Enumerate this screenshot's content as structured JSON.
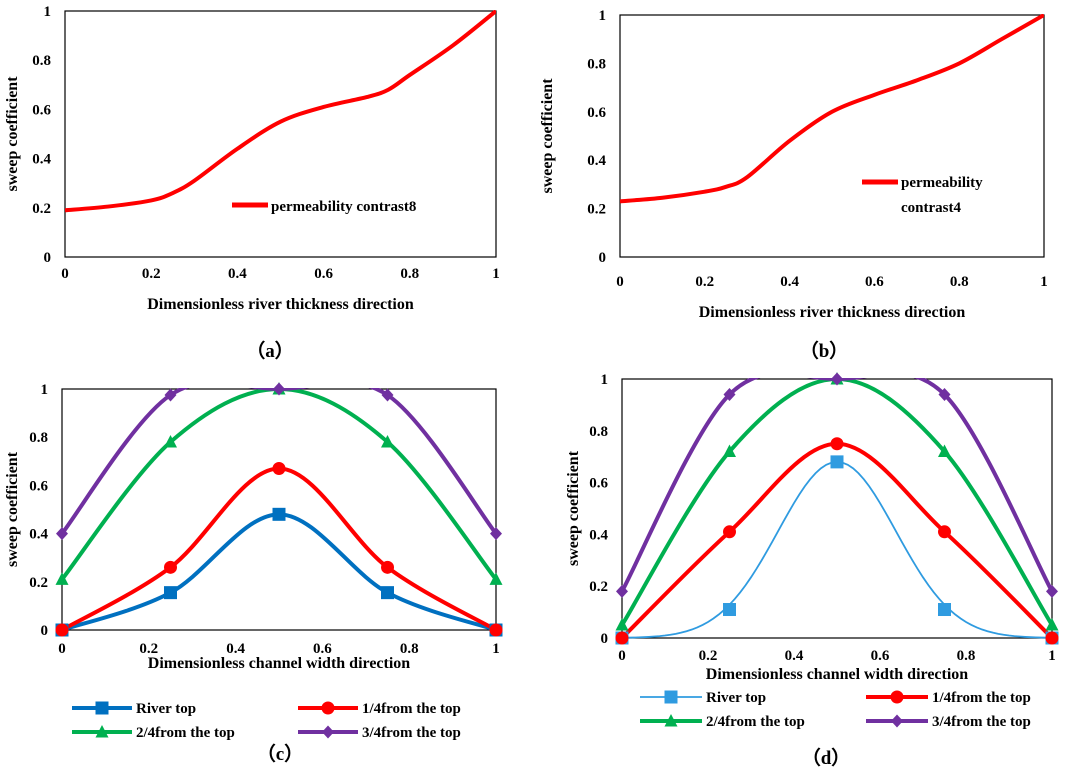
{
  "colors": {
    "axis": "#000000",
    "red": "#ff0000",
    "blue": "#0070c0",
    "green": "#00b050",
    "purple": "#7030a0",
    "marker_blue": "#2f9be0",
    "frame": "#9a9a9a"
  },
  "chart_data": [
    {
      "id": "a",
      "type": "line",
      "caption": "（a）",
      "xlabel": "Dimensionless river thickness direction",
      "ylabel": "sweep coefficient",
      "xlim": [
        0,
        1
      ],
      "ylim": [
        0,
        1
      ],
      "xticks": [
        "0",
        "0.2",
        "0.4",
        "0.6",
        "0.8",
        "1"
      ],
      "yticks": [
        "0",
        "0.2",
        "0.4",
        "0.6",
        "0.8",
        "1"
      ],
      "series": [
        {
          "name": "permeability contrast8",
          "color": "#ff0000",
          "x": [
            0,
            0.1,
            0.2,
            0.25,
            0.3,
            0.4,
            0.5,
            0.6,
            0.7,
            0.75,
            0.8,
            0.9,
            1
          ],
          "y": [
            0.19,
            0.205,
            0.23,
            0.26,
            0.31,
            0.44,
            0.55,
            0.61,
            0.65,
            0.68,
            0.74,
            0.86,
            1
          ]
        }
      ]
    },
    {
      "id": "b",
      "type": "line",
      "caption": "（b）",
      "xlabel": "Dimensionless river thickness direction",
      "ylabel": "sweep coefficient",
      "xlim": [
        0,
        1
      ],
      "ylim": [
        0,
        1
      ],
      "xticks": [
        "0",
        "0.2",
        "0.4",
        "0.6",
        "0.8",
        "1"
      ],
      "yticks": [
        "0",
        "0.2",
        "0.4",
        "0.6",
        "0.8",
        "1"
      ],
      "series": [
        {
          "name": "permeability contrast4",
          "name_lines": [
            "permeability",
            "contrast4"
          ],
          "color": "#ff0000",
          "x": [
            0,
            0.1,
            0.2,
            0.25,
            0.3,
            0.4,
            0.5,
            0.6,
            0.7,
            0.8,
            0.9,
            1
          ],
          "y": [
            0.23,
            0.245,
            0.27,
            0.29,
            0.33,
            0.48,
            0.6,
            0.67,
            0.73,
            0.8,
            0.9,
            1
          ]
        }
      ]
    },
    {
      "id": "c",
      "type": "line",
      "caption": "（c）",
      "xlabel": "Dimensionless channel width direction",
      "ylabel": "sweep coefficient",
      "xlim": [
        0,
        1
      ],
      "ylim": [
        0,
        1
      ],
      "xticks": [
        "0",
        "0.2",
        "0.4",
        "0.6",
        "0.8",
        "1"
      ],
      "yticks": [
        "0",
        "0.2",
        "0.4",
        "0.6",
        "0.8",
        "1"
      ],
      "x": [
        0,
        0.25,
        0.5,
        0.75,
        1
      ],
      "series": [
        {
          "name": "River top",
          "color": "#0070c0",
          "marker": "square",
          "values": [
            0,
            0.155,
            0.48,
            0.155,
            0
          ]
        },
        {
          "name": "1/4from the top",
          "color": "#ff0000",
          "marker": "circle",
          "values": [
            0,
            0.26,
            0.67,
            0.26,
            0
          ]
        },
        {
          "name": "2/4from the top",
          "color": "#00b050",
          "marker": "triangle",
          "values": [
            0.21,
            0.78,
            1,
            0.78,
            0.21
          ]
        },
        {
          "name": "3/4from the top",
          "color": "#7030a0",
          "marker": "diamond",
          "values": [
            0.4,
            0.975,
            1,
            0.975,
            0.4
          ]
        }
      ]
    },
    {
      "id": "d",
      "type": "line",
      "caption": "（d）",
      "xlabel": "Dimensionless channel width direction",
      "ylabel": "sweep coefficient",
      "xlim": [
        0,
        1
      ],
      "ylim": [
        0,
        1
      ],
      "xticks": [
        "0",
        "0.2",
        "0.4",
        "0.6",
        "0.8",
        "1"
      ],
      "yticks": [
        "0",
        "0.2",
        "0.4",
        "0.6",
        "0.8",
        "1"
      ],
      "x": [
        0,
        0.25,
        0.5,
        0.75,
        1
      ],
      "series": [
        {
          "name": "River top",
          "color": "#2f9be0",
          "marker": "square",
          "thin": true,
          "values": [
            0,
            0.11,
            0.68,
            0.11,
            0
          ]
        },
        {
          "name": "1/4from the top",
          "color": "#ff0000",
          "marker": "circle",
          "values": [
            0,
            0.41,
            0.75,
            0.41,
            0
          ]
        },
        {
          "name": "2/4from the top",
          "color": "#00b050",
          "marker": "triangle",
          "values": [
            0.05,
            0.72,
            1,
            0.72,
            0.05
          ]
        },
        {
          "name": "3/4from the top",
          "color": "#7030a0",
          "marker": "diamond",
          "values": [
            0.18,
            0.94,
            1,
            0.94,
            0.18
          ]
        }
      ]
    }
  ]
}
